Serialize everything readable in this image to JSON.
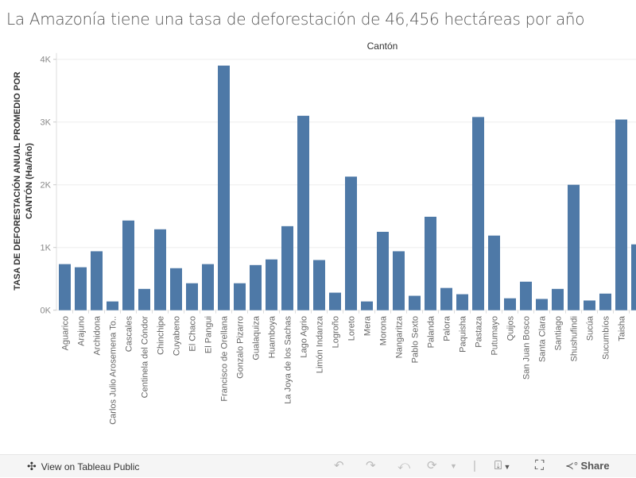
{
  "title": "La Amazonía tiene una tasa de deforestación de 46,456 hectáreas por año",
  "chart_data": {
    "type": "bar",
    "title": "",
    "column_header": "Cantón",
    "xlabel": "",
    "ylabel": "TASA DE DEFORESTACIÓN ANUAL PROMEDIO POR CANTÓN (Ha/Año)",
    "ylabel_lines": [
      "TASA DE DEFORESTACIÓN ANUAL PROMEDIO POR",
      "CANTÓN (Ha/Año)"
    ],
    "ylim": [
      0,
      4000
    ],
    "yticks": [
      0,
      1000,
      2000,
      3000,
      4000
    ],
    "ytick_labels": [
      "0K",
      "1K",
      "2K",
      "3K",
      "4K"
    ],
    "grid": true,
    "color": "#4e79a7",
    "categories": [
      "Aguarico",
      "Arajuno",
      "Archidona",
      "Carlos Julio Arosemena To..",
      "Cascales",
      "Centinela del Cóndor",
      "Chinchipe",
      "Cuyabeno",
      "El Chaco",
      "El Pangui",
      "Francisco de Orellana",
      "Gonzalo Pizarro",
      "Gualaquiza",
      "Huamboya",
      "La Joya de los Sachas",
      "Lago Agrio",
      "Limón Indanza",
      "Logroño",
      "Loreto",
      "Mera",
      "Morona",
      "Nangaritza",
      "Pablo Sexto",
      "Palanda",
      "Palora",
      "Paquisha",
      "Pastaza",
      "Putumayo",
      "Quijos",
      "San Juan Bosco",
      "Santa Clara",
      "Santiago",
      "Shushufindi",
      "Sucúa",
      "Sucumbíos",
      "Taisha",
      ""
    ],
    "values": [
      735,
      685,
      940,
      140,
      1430,
      340,
      1290,
      670,
      430,
      735,
      3900,
      430,
      720,
      810,
      1340,
      3100,
      800,
      280,
      2130,
      140,
      1250,
      940,
      230,
      1490,
      355,
      255,
      3080,
      1190,
      190,
      455,
      180,
      340,
      2000,
      155,
      265,
      3040,
      1050
    ]
  },
  "toolbar": {
    "view_label": "View on Tableau Public",
    "share_label": "Share"
  }
}
